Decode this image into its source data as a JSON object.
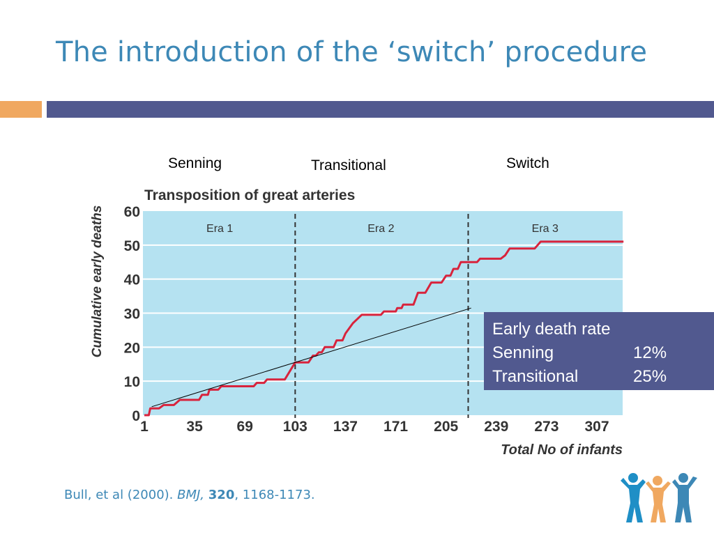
{
  "slide": {
    "title": "The introduction of the ‘switch’ procedure"
  },
  "era_captions": [
    "Senning",
    "Transitional",
    "Switch"
  ],
  "chart_data": {
    "type": "line",
    "title": "Transposition of great arteries",
    "xlabel": "Total No of infants",
    "ylabel": "Cumulative early deaths",
    "xlim": [
      1,
      325
    ],
    "ylim": [
      0,
      60
    ],
    "x_ticks": [
      1,
      35,
      69,
      103,
      137,
      171,
      205,
      239,
      273,
      307
    ],
    "y_ticks": [
      0,
      10,
      20,
      30,
      40,
      50,
      60
    ],
    "grid": "horizontal",
    "era_dividers": [
      103,
      220
    ],
    "era_labels": [
      {
        "label": "Era 1",
        "x": 52
      },
      {
        "label": "Era 2",
        "x": 161
      },
      {
        "label": "Era 3",
        "x": 272
      }
    ],
    "series": [
      {
        "color": "#d8233c",
        "points": [
          [
            1,
            0
          ],
          [
            4,
            0
          ],
          [
            5,
            2
          ],
          [
            11,
            2
          ],
          [
            14,
            3
          ],
          [
            21,
            3
          ],
          [
            25,
            4.5
          ],
          [
            38,
            4.5
          ],
          [
            40,
            6
          ],
          [
            44,
            6
          ],
          [
            45,
            7.5
          ],
          [
            51,
            7.5
          ],
          [
            53,
            8.5
          ],
          [
            75,
            8.5
          ],
          [
            77,
            9.5
          ],
          [
            82,
            9.5
          ],
          [
            84,
            10.5
          ],
          [
            96,
            10.5
          ],
          [
            103,
            15.5
          ],
          [
            106,
            15.5
          ],
          [
            112,
            15.5
          ],
          [
            115,
            17.5
          ],
          [
            117,
            17.5
          ],
          [
            119,
            18.5
          ],
          [
            121,
            18.5
          ],
          [
            123,
            20
          ],
          [
            129,
            20
          ],
          [
            131,
            22
          ],
          [
            135,
            22
          ],
          [
            137,
            24
          ],
          [
            142,
            27
          ],
          [
            148,
            29.5
          ],
          [
            161,
            29.5
          ],
          [
            163,
            30.5
          ],
          [
            171,
            30.5
          ],
          [
            172,
            31.5
          ],
          [
            175,
            31.5
          ],
          [
            176,
            32.5
          ],
          [
            183,
            32.5
          ],
          [
            186,
            36
          ],
          [
            191,
            36
          ],
          [
            195,
            39
          ],
          [
            202,
            39
          ],
          [
            205,
            41
          ],
          [
            208,
            41
          ],
          [
            210,
            43
          ],
          [
            213,
            43
          ],
          [
            215,
            45
          ],
          [
            226,
            45
          ],
          [
            228,
            46
          ],
          [
            242,
            46
          ],
          [
            245,
            47
          ],
          [
            248,
            49
          ],
          [
            265,
            49
          ],
          [
            269,
            51
          ],
          [
            325,
            51
          ]
        ]
      },
      {
        "color": "#000000",
        "points": [
          [
            6,
            2.5
          ],
          [
            222,
            31.5
          ]
        ]
      }
    ]
  },
  "rate_box": {
    "heading": "Early death rate",
    "rows": [
      {
        "label": "Senning",
        "value": "12%"
      },
      {
        "label": "Transitional",
        "value": "25%"
      }
    ]
  },
  "citation": {
    "authors": "Bull, et al (2000). ",
    "journal": "BMJ,",
    "volume": "320",
    "pages": ", 1168-1173."
  },
  "logo": {
    "colors": [
      "#1f8fc6",
      "#f0a860",
      "#3d88b6"
    ],
    "icon": "people-group-icon"
  }
}
